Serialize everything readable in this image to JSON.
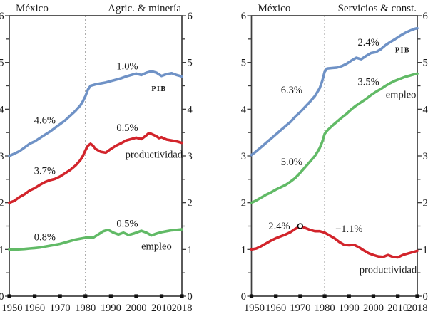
{
  "figure_background": "#ffffff",
  "colors": {
    "axis": "#3d3d3d",
    "tick_square": "#111111",
    "reference_dashed": "#a3a3a3",
    "text": "#1a1a1a",
    "pib_line": "#6f92c6",
    "productividad_line": "#d2242b",
    "empleo_line": "#61ba66"
  },
  "chart_data": [
    {
      "type": "line",
      "title_left": "México",
      "title_right": "Agric. & minería",
      "xlim": [
        1950,
        2018
      ],
      "ylim": [
        0,
        6
      ],
      "xticks": [
        1950,
        1960,
        1970,
        1980,
        1990,
        2000,
        2010,
        2018
      ],
      "yticks": [
        0,
        1,
        2,
        3,
        4,
        5,
        6
      ],
      "y_minor_step": 0.5,
      "grid": "off",
      "reference_line_x": 1980,
      "series": [
        {
          "name": "PIB",
          "color": "#6f92c6",
          "points": [
            [
              1950,
              3.0
            ],
            [
              1952,
              3.05
            ],
            [
              1954,
              3.1
            ],
            [
              1956,
              3.18
            ],
            [
              1958,
              3.26
            ],
            [
              1960,
              3.31
            ],
            [
              1962,
              3.38
            ],
            [
              1964,
              3.45
            ],
            [
              1966,
              3.52
            ],
            [
              1968,
              3.6
            ],
            [
              1970,
              3.68
            ],
            [
              1972,
              3.76
            ],
            [
              1974,
              3.86
            ],
            [
              1976,
              3.96
            ],
            [
              1978,
              4.08
            ],
            [
              1979,
              4.17
            ],
            [
              1980,
              4.28
            ],
            [
              1981,
              4.42
            ],
            [
              1982,
              4.5
            ],
            [
              1984,
              4.53
            ],
            [
              1986,
              4.55
            ],
            [
              1988,
              4.57
            ],
            [
              1990,
              4.6
            ],
            [
              1992,
              4.63
            ],
            [
              1994,
              4.66
            ],
            [
              1996,
              4.7
            ],
            [
              1998,
              4.73
            ],
            [
              2000,
              4.76
            ],
            [
              2002,
              4.73
            ],
            [
              2004,
              4.78
            ],
            [
              2006,
              4.81
            ],
            [
              2008,
              4.78
            ],
            [
              2010,
              4.71
            ],
            [
              2012,
              4.75
            ],
            [
              2014,
              4.77
            ],
            [
              2016,
              4.73
            ],
            [
              2018,
              4.7
            ]
          ]
        },
        {
          "name": "productividad",
          "color": "#d2242b",
          "points": [
            [
              1950,
              2.0
            ],
            [
              1952,
              2.04
            ],
            [
              1954,
              2.12
            ],
            [
              1956,
              2.18
            ],
            [
              1958,
              2.26
            ],
            [
              1960,
              2.31
            ],
            [
              1962,
              2.38
            ],
            [
              1964,
              2.44
            ],
            [
              1966,
              2.48
            ],
            [
              1968,
              2.51
            ],
            [
              1970,
              2.56
            ],
            [
              1972,
              2.63
            ],
            [
              1974,
              2.7
            ],
            [
              1976,
              2.79
            ],
            [
              1978,
              2.91
            ],
            [
              1979,
              3.0
            ],
            [
              1980,
              3.12
            ],
            [
              1981,
              3.22
            ],
            [
              1982,
              3.26
            ],
            [
              1983,
              3.22
            ],
            [
              1984,
              3.15
            ],
            [
              1986,
              3.09
            ],
            [
              1988,
              3.07
            ],
            [
              1990,
              3.15
            ],
            [
              1992,
              3.22
            ],
            [
              1994,
              3.27
            ],
            [
              1996,
              3.33
            ],
            [
              1998,
              3.36
            ],
            [
              2000,
              3.39
            ],
            [
              2002,
              3.36
            ],
            [
              2004,
              3.44
            ],
            [
              2005,
              3.49
            ],
            [
              2006,
              3.47
            ],
            [
              2008,
              3.42
            ],
            [
              2009,
              3.38
            ],
            [
              2010,
              3.4
            ],
            [
              2012,
              3.35
            ],
            [
              2014,
              3.33
            ],
            [
              2016,
              3.31
            ],
            [
              2018,
              3.28
            ]
          ]
        },
        {
          "name": "empleo",
          "color": "#61ba66",
          "points": [
            [
              1950,
              1.0
            ],
            [
              1953,
              1.0
            ],
            [
              1956,
              1.01
            ],
            [
              1958,
              1.02
            ],
            [
              1960,
              1.03
            ],
            [
              1962,
              1.04
            ],
            [
              1964,
              1.06
            ],
            [
              1966,
              1.08
            ],
            [
              1968,
              1.1
            ],
            [
              1970,
              1.12
            ],
            [
              1972,
              1.15
            ],
            [
              1974,
              1.18
            ],
            [
              1976,
              1.21
            ],
            [
              1978,
              1.23
            ],
            [
              1980,
              1.25
            ],
            [
              1981,
              1.26
            ],
            [
              1983,
              1.25
            ],
            [
              1985,
              1.32
            ],
            [
              1987,
              1.39
            ],
            [
              1989,
              1.42
            ],
            [
              1991,
              1.36
            ],
            [
              1993,
              1.32
            ],
            [
              1995,
              1.36
            ],
            [
              1997,
              1.31
            ],
            [
              1999,
              1.34
            ],
            [
              2001,
              1.38
            ],
            [
              2002,
              1.4
            ],
            [
              2004,
              1.36
            ],
            [
              2006,
              1.3
            ],
            [
              2008,
              1.34
            ],
            [
              2010,
              1.37
            ],
            [
              2012,
              1.39
            ],
            [
              2014,
              1.41
            ],
            [
              2016,
              1.42
            ],
            [
              2018,
              1.43
            ]
          ]
        }
      ],
      "markers": [],
      "annotations": [
        {
          "text": "4.6%",
          "x": 1964,
          "y": 3.77,
          "kind": "growth-rate"
        },
        {
          "text": "1.0%",
          "x": 1996.5,
          "y": 4.93,
          "kind": "growth-rate"
        },
        {
          "text": "PIB",
          "x": 2009,
          "y": 4.46,
          "kind": "series-label-smallcaps"
        },
        {
          "text": "3.7%",
          "x": 1964,
          "y": 2.69,
          "kind": "growth-rate"
        },
        {
          "text": "0.5%",
          "x": 1996.5,
          "y": 3.61,
          "kind": "growth-rate"
        },
        {
          "text": "productividad",
          "x": 2007,
          "y": 3.04,
          "kind": "series-label"
        },
        {
          "text": "0.8%",
          "x": 1964,
          "y": 1.27,
          "kind": "growth-rate"
        },
        {
          "text": "0.5%",
          "x": 1996.5,
          "y": 1.56,
          "kind": "growth-rate"
        },
        {
          "text": "empleo",
          "x": 2008,
          "y": 1.07,
          "kind": "series-label"
        }
      ]
    },
    {
      "type": "line",
      "title_left": "México",
      "title_right": "Servicios & const.",
      "xlim": [
        1950,
        2018
      ],
      "ylim": [
        0,
        6
      ],
      "xticks": [
        1950,
        1960,
        1970,
        1980,
        1990,
        2000,
        2010,
        2018
      ],
      "yticks": [
        0,
        1,
        2,
        3,
        4,
        5,
        6
      ],
      "y_minor_step": 0.5,
      "grid": "off",
      "reference_line_x": 1980,
      "series": [
        {
          "name": "PIB",
          "color": "#6f92c6",
          "points": [
            [
              1950,
              3.02
            ],
            [
              1952,
              3.1
            ],
            [
              1954,
              3.19
            ],
            [
              1956,
              3.28
            ],
            [
              1958,
              3.37
            ],
            [
              1960,
              3.46
            ],
            [
              1962,
              3.55
            ],
            [
              1964,
              3.64
            ],
            [
              1966,
              3.73
            ],
            [
              1968,
              3.84
            ],
            [
              1970,
              3.94
            ],
            [
              1972,
              4.05
            ],
            [
              1974,
              4.16
            ],
            [
              1976,
              4.28
            ],
            [
              1978,
              4.45
            ],
            [
              1979,
              4.6
            ],
            [
              1980,
              4.8
            ],
            [
              1981,
              4.87
            ],
            [
              1983,
              4.88
            ],
            [
              1985,
              4.89
            ],
            [
              1987,
              4.92
            ],
            [
              1989,
              4.97
            ],
            [
              1991,
              5.04
            ],
            [
              1993,
              5.1
            ],
            [
              1995,
              5.07
            ],
            [
              1997,
              5.14
            ],
            [
              1999,
              5.2
            ],
            [
              2001,
              5.22
            ],
            [
              2003,
              5.28
            ],
            [
              2005,
              5.37
            ],
            [
              2007,
              5.44
            ],
            [
              2009,
              5.5
            ],
            [
              2011,
              5.57
            ],
            [
              2013,
              5.63
            ],
            [
              2015,
              5.68
            ],
            [
              2017,
              5.72
            ],
            [
              2018,
              5.73
            ]
          ]
        },
        {
          "name": "empleo",
          "color": "#61ba66",
          "points": [
            [
              1950,
              2.0
            ],
            [
              1952,
              2.05
            ],
            [
              1954,
              2.11
            ],
            [
              1956,
              2.17
            ],
            [
              1958,
              2.22
            ],
            [
              1960,
              2.28
            ],
            [
              1962,
              2.33
            ],
            [
              1964,
              2.38
            ],
            [
              1966,
              2.45
            ],
            [
              1968,
              2.53
            ],
            [
              1970,
              2.64
            ],
            [
              1972,
              2.76
            ],
            [
              1974,
              2.88
            ],
            [
              1976,
              3.0
            ],
            [
              1977,
              3.08
            ],
            [
              1978,
              3.17
            ],
            [
              1979,
              3.3
            ],
            [
              1980,
              3.47
            ],
            [
              1981,
              3.54
            ],
            [
              1983,
              3.64
            ],
            [
              1985,
              3.73
            ],
            [
              1987,
              3.82
            ],
            [
              1989,
              3.9
            ],
            [
              1991,
              4.0
            ],
            [
              1993,
              4.08
            ],
            [
              1995,
              4.15
            ],
            [
              1997,
              4.22
            ],
            [
              1999,
              4.3
            ],
            [
              2001,
              4.37
            ],
            [
              2003,
              4.43
            ],
            [
              2005,
              4.5
            ],
            [
              2007,
              4.56
            ],
            [
              2009,
              4.61
            ],
            [
              2011,
              4.65
            ],
            [
              2013,
              4.69
            ],
            [
              2015,
              4.72
            ],
            [
              2017,
              4.75
            ],
            [
              2018,
              4.76
            ]
          ]
        },
        {
          "name": "productividad",
          "color": "#d2242b",
          "points": [
            [
              1950,
              1.0
            ],
            [
              1952,
              1.02
            ],
            [
              1954,
              1.07
            ],
            [
              1956,
              1.13
            ],
            [
              1958,
              1.19
            ],
            [
              1960,
              1.24
            ],
            [
              1962,
              1.28
            ],
            [
              1964,
              1.32
            ],
            [
              1966,
              1.37
            ],
            [
              1968,
              1.44
            ],
            [
              1970,
              1.5
            ],
            [
              1972,
              1.46
            ],
            [
              1974,
              1.42
            ],
            [
              1976,
              1.39
            ],
            [
              1978,
              1.39
            ],
            [
              1980,
              1.36
            ],
            [
              1982,
              1.3
            ],
            [
              1984,
              1.24
            ],
            [
              1986,
              1.16
            ],
            [
              1988,
              1.1
            ],
            [
              1990,
              1.09
            ],
            [
              1992,
              1.1
            ],
            [
              1994,
              1.05
            ],
            [
              1996,
              0.98
            ],
            [
              1998,
              0.92
            ],
            [
              2000,
              0.88
            ],
            [
              2002,
              0.85
            ],
            [
              2004,
              0.84
            ],
            [
              2006,
              0.88
            ],
            [
              2008,
              0.84
            ],
            [
              2010,
              0.83
            ],
            [
              2012,
              0.88
            ],
            [
              2014,
              0.91
            ],
            [
              2016,
              0.94
            ],
            [
              2018,
              0.97
            ]
          ]
        }
      ],
      "markers": [
        {
          "x": 1970,
          "y": 1.5,
          "shape": "open-circle",
          "series": "productividad"
        }
      ],
      "annotations": [
        {
          "text": "6.3%",
          "x": 1966.5,
          "y": 4.42,
          "kind": "growth-rate"
        },
        {
          "text": "2.4%",
          "x": 1998,
          "y": 5.44,
          "kind": "growth-rate"
        },
        {
          "text": "PIB",
          "x": 2012,
          "y": 5.29,
          "kind": "series-label-smallcaps"
        },
        {
          "text": "5.0%",
          "x": 1966.5,
          "y": 2.88,
          "kind": "growth-rate"
        },
        {
          "text": "3.5%",
          "x": 1998,
          "y": 4.59,
          "kind": "growth-rate"
        },
        {
          "text": "empleo",
          "x": 2011.3,
          "y": 4.32,
          "kind": "series-label"
        },
        {
          "text": "2.4%",
          "x": 1961.4,
          "y": 1.51,
          "kind": "growth-rate"
        },
        {
          "text": "−1.1%",
          "x": 1990,
          "y": 1.45,
          "kind": "growth-rate"
        },
        {
          "text": "productividad",
          "x": 2006,
          "y": 0.57,
          "kind": "series-label"
        }
      ]
    }
  ]
}
